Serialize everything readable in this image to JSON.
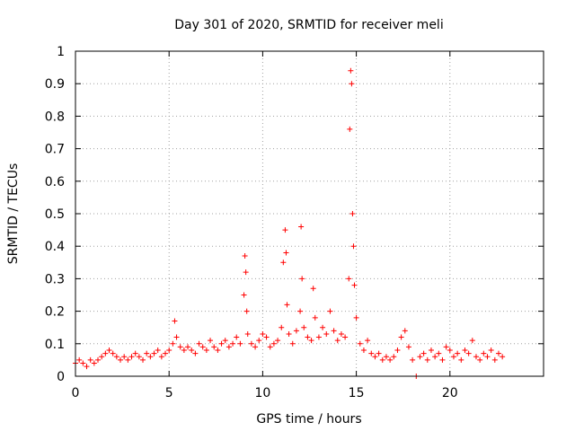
{
  "chart_data": {
    "type": "scatter",
    "title": "Day 301 of 2020, SRMTID for receiver meli",
    "xlabel": "GPS time / hours",
    "ylabel": "SRMTID / TECUs",
    "xlim": [
      0,
      25
    ],
    "ylim": [
      0,
      1
    ],
    "x_ticks": [
      0,
      5,
      10,
      15,
      20
    ],
    "x_tick_labels": [
      "0",
      "5",
      "10",
      "15",
      "20"
    ],
    "y_ticks": [
      0,
      0.1,
      0.2,
      0.3,
      0.4,
      0.5,
      0.6,
      0.7,
      0.8,
      0.9,
      1
    ],
    "y_tick_labels": [
      "0",
      "0.1",
      "0.2",
      "0.3",
      "0.4",
      "0.5",
      "0.6",
      "0.7",
      "0.8",
      "0.9",
      "1"
    ],
    "grid": true,
    "marker": "+",
    "color": "#ff0000",
    "series": [
      {
        "name": "SRMTID",
        "x": [
          0.0,
          0.2,
          0.4,
          0.6,
          0.8,
          1.0,
          1.2,
          1.4,
          1.6,
          1.8,
          2.0,
          2.2,
          2.4,
          2.6,
          2.8,
          3.0,
          3.2,
          3.4,
          3.6,
          3.8,
          4.0,
          4.2,
          4.4,
          4.6,
          4.8,
          5.0,
          5.2,
          5.3,
          5.4,
          5.6,
          5.8,
          6.0,
          6.2,
          6.4,
          6.6,
          6.8,
          7.0,
          7.2,
          7.4,
          7.6,
          7.8,
          8.0,
          8.2,
          8.4,
          8.6,
          8.8,
          9.0,
          9.05,
          9.1,
          9.15,
          9.2,
          9.4,
          9.6,
          9.8,
          10.0,
          10.2,
          10.4,
          10.6,
          10.8,
          11.0,
          11.1,
          11.2,
          11.25,
          11.3,
          11.4,
          11.6,
          11.8,
          12.0,
          12.05,
          12.1,
          12.2,
          12.4,
          12.6,
          12.7,
          12.8,
          13.0,
          13.2,
          13.4,
          13.6,
          13.8,
          14.0,
          14.2,
          14.4,
          14.6,
          14.65,
          14.7,
          14.75,
          14.8,
          14.85,
          14.9,
          15.0,
          15.2,
          15.4,
          15.6,
          15.8,
          16.0,
          16.2,
          16.4,
          16.6,
          16.8,
          17.0,
          17.2,
          17.4,
          17.6,
          17.8,
          18.0,
          18.2,
          18.4,
          18.6,
          18.8,
          19.0,
          19.2,
          19.4,
          19.6,
          19.8,
          20.0,
          20.2,
          20.4,
          20.6,
          20.8,
          21.0,
          21.2,
          21.4,
          21.6,
          21.8,
          22.0,
          22.2,
          22.4,
          22.6,
          22.8
        ],
        "y": [
          0.04,
          0.05,
          0.04,
          0.03,
          0.05,
          0.04,
          0.05,
          0.06,
          0.07,
          0.08,
          0.07,
          0.06,
          0.05,
          0.06,
          0.05,
          0.06,
          0.07,
          0.06,
          0.05,
          0.07,
          0.06,
          0.07,
          0.08,
          0.06,
          0.07,
          0.08,
          0.1,
          0.17,
          0.12,
          0.09,
          0.08,
          0.09,
          0.08,
          0.07,
          0.1,
          0.09,
          0.08,
          0.11,
          0.09,
          0.08,
          0.1,
          0.11,
          0.09,
          0.1,
          0.12,
          0.1,
          0.25,
          0.37,
          0.32,
          0.2,
          0.13,
          0.1,
          0.09,
          0.11,
          0.13,
          0.12,
          0.09,
          0.1,
          0.11,
          0.15,
          0.35,
          0.45,
          0.38,
          0.22,
          0.13,
          0.1,
          0.14,
          0.2,
          0.46,
          0.3,
          0.15,
          0.12,
          0.11,
          0.27,
          0.18,
          0.12,
          0.15,
          0.13,
          0.2,
          0.14,
          0.11,
          0.13,
          0.12,
          0.3,
          0.76,
          0.94,
          0.9,
          0.5,
          0.4,
          0.28,
          0.18,
          0.1,
          0.08,
          0.11,
          0.07,
          0.06,
          0.07,
          0.05,
          0.06,
          0.05,
          0.06,
          0.08,
          0.12,
          0.14,
          0.09,
          0.05,
          0.0,
          0.06,
          0.07,
          0.05,
          0.08,
          0.06,
          0.07,
          0.05,
          0.09,
          0.08,
          0.06,
          0.07,
          0.05,
          0.08,
          0.07,
          0.11,
          0.06,
          0.05,
          0.07,
          0.06,
          0.08,
          0.05,
          0.07,
          0.06
        ]
      }
    ]
  }
}
